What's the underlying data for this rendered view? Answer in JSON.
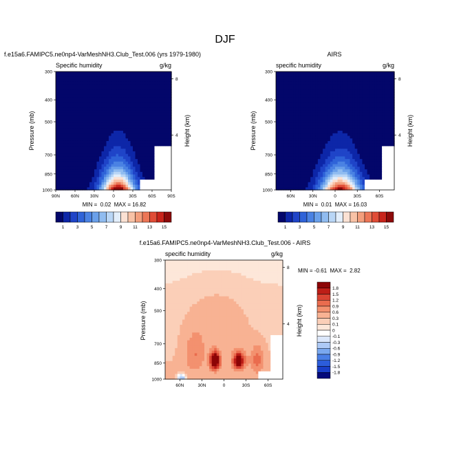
{
  "figure": {
    "title": "DJF"
  },
  "colors": {
    "seq": [
      "#03066a",
      "#0d26a8",
      "#1f44c8",
      "#2f63d8",
      "#4a82e3",
      "#6aa0ea",
      "#90bcf0",
      "#b9d6f6",
      "#e2eefb",
      "#fbe1d3",
      "#f8c2a6",
      "#f39e7c",
      "#ec7656",
      "#e04c36",
      "#c8241b",
      "#8c0a0a"
    ],
    "diff": [
      "#050a7a",
      "#1a3fc8",
      "#2c5ddb",
      "#4a7fe6",
      "#7aa8ef",
      "#aecaf6",
      "#dbe7fb",
      "#ffffff",
      "#fde7d9",
      "#fbcfb8",
      "#f8b293",
      "#f3916f",
      "#ea6c4e",
      "#d94433",
      "#bd1e17",
      "#8c0506"
    ]
  },
  "chart_data": [
    {
      "type": "heatmap",
      "panel": "model",
      "title": "f.e15a6.FAMIPC5.ne0np4-VarMeshNH3.Club_Test.006 (yrs 1979-1980)",
      "left_label": "Specific humidity",
      "right_label": "g/kg",
      "ylabel": "Pressure (mb)",
      "ylabel_right": "Height (km)",
      "x_ticks": [
        "90N",
        "60N",
        "30N",
        "0",
        "30S",
        "60S",
        "90S"
      ],
      "y_ticks": [
        "300",
        "400",
        "500",
        "700",
        "850",
        "1000"
      ],
      "y_ticks_right": [
        "8",
        "4"
      ],
      "ylim": [
        1000,
        300
      ],
      "stats": "MIN =  0.02  MAX = 16.82",
      "min": 0.02,
      "max": 16.82,
      "colorbar_labels": [
        "1",
        "3",
        "5",
        "7",
        "9",
        "11",
        "13",
        "15"
      ],
      "levels": [
        1,
        2,
        3,
        4,
        5,
        6,
        7,
        8,
        9,
        10,
        11,
        12,
        13,
        14,
        15
      ]
    },
    {
      "type": "heatmap",
      "panel": "obs",
      "title": "AIRS",
      "left_label": "specific humidity",
      "right_label": "g/kg",
      "ylabel": "Pressure (mb)",
      "ylabel_right": "Height (km)",
      "x_ticks": [
        "60N",
        "30N",
        "0",
        "30S",
        "60S"
      ],
      "y_ticks": [
        "300",
        "400",
        "500",
        "700",
        "850",
        "1000"
      ],
      "y_ticks_right": [
        "8",
        "4"
      ],
      "ylim": [
        1000,
        300
      ],
      "stats": "MIN =  0.01  MAX = 16.03",
      "min": 0.01,
      "max": 16.03,
      "colorbar_labels": [
        "1",
        "3",
        "5",
        "7",
        "9",
        "11",
        "13",
        "15"
      ],
      "levels": [
        1,
        2,
        3,
        4,
        5,
        6,
        7,
        8,
        9,
        10,
        11,
        12,
        13,
        14,
        15
      ]
    },
    {
      "type": "heatmap",
      "panel": "diff",
      "title": "f.e15a6.FAMIPC5.ne0np4-VarMeshNH3.Club_Test.006 - AIRS",
      "left_label": "specific humidity",
      "right_label": "g/kg",
      "ylabel": "Pressure (mb)",
      "ylabel_right": "Height (km)",
      "x_ticks": [
        "60N",
        "30N",
        "0",
        "30S",
        "60S"
      ],
      "y_ticks": [
        "300",
        "400",
        "500",
        "700",
        "850",
        "1000"
      ],
      "y_ticks_right": [
        "8",
        "4"
      ],
      "ylim": [
        1000,
        300
      ],
      "stats": "MIN = -0.61  MAX =  2.82",
      "min": -0.61,
      "max": 2.82,
      "colorbar_labels": [
        "1.8",
        "1.5",
        "1.2",
        "0.9",
        "0.6",
        "0.3",
        "0.1",
        "0",
        "-0.1",
        "-0.3",
        "-0.6",
        "-0.9",
        "-1.2",
        "-1.5",
        "-1.8"
      ],
      "levels": [
        -1.8,
        -1.5,
        -1.2,
        -0.9,
        -0.6,
        -0.3,
        -0.1,
        0,
        0.1,
        0.3,
        0.6,
        0.9,
        1.2,
        1.5,
        1.8
      ]
    }
  ]
}
